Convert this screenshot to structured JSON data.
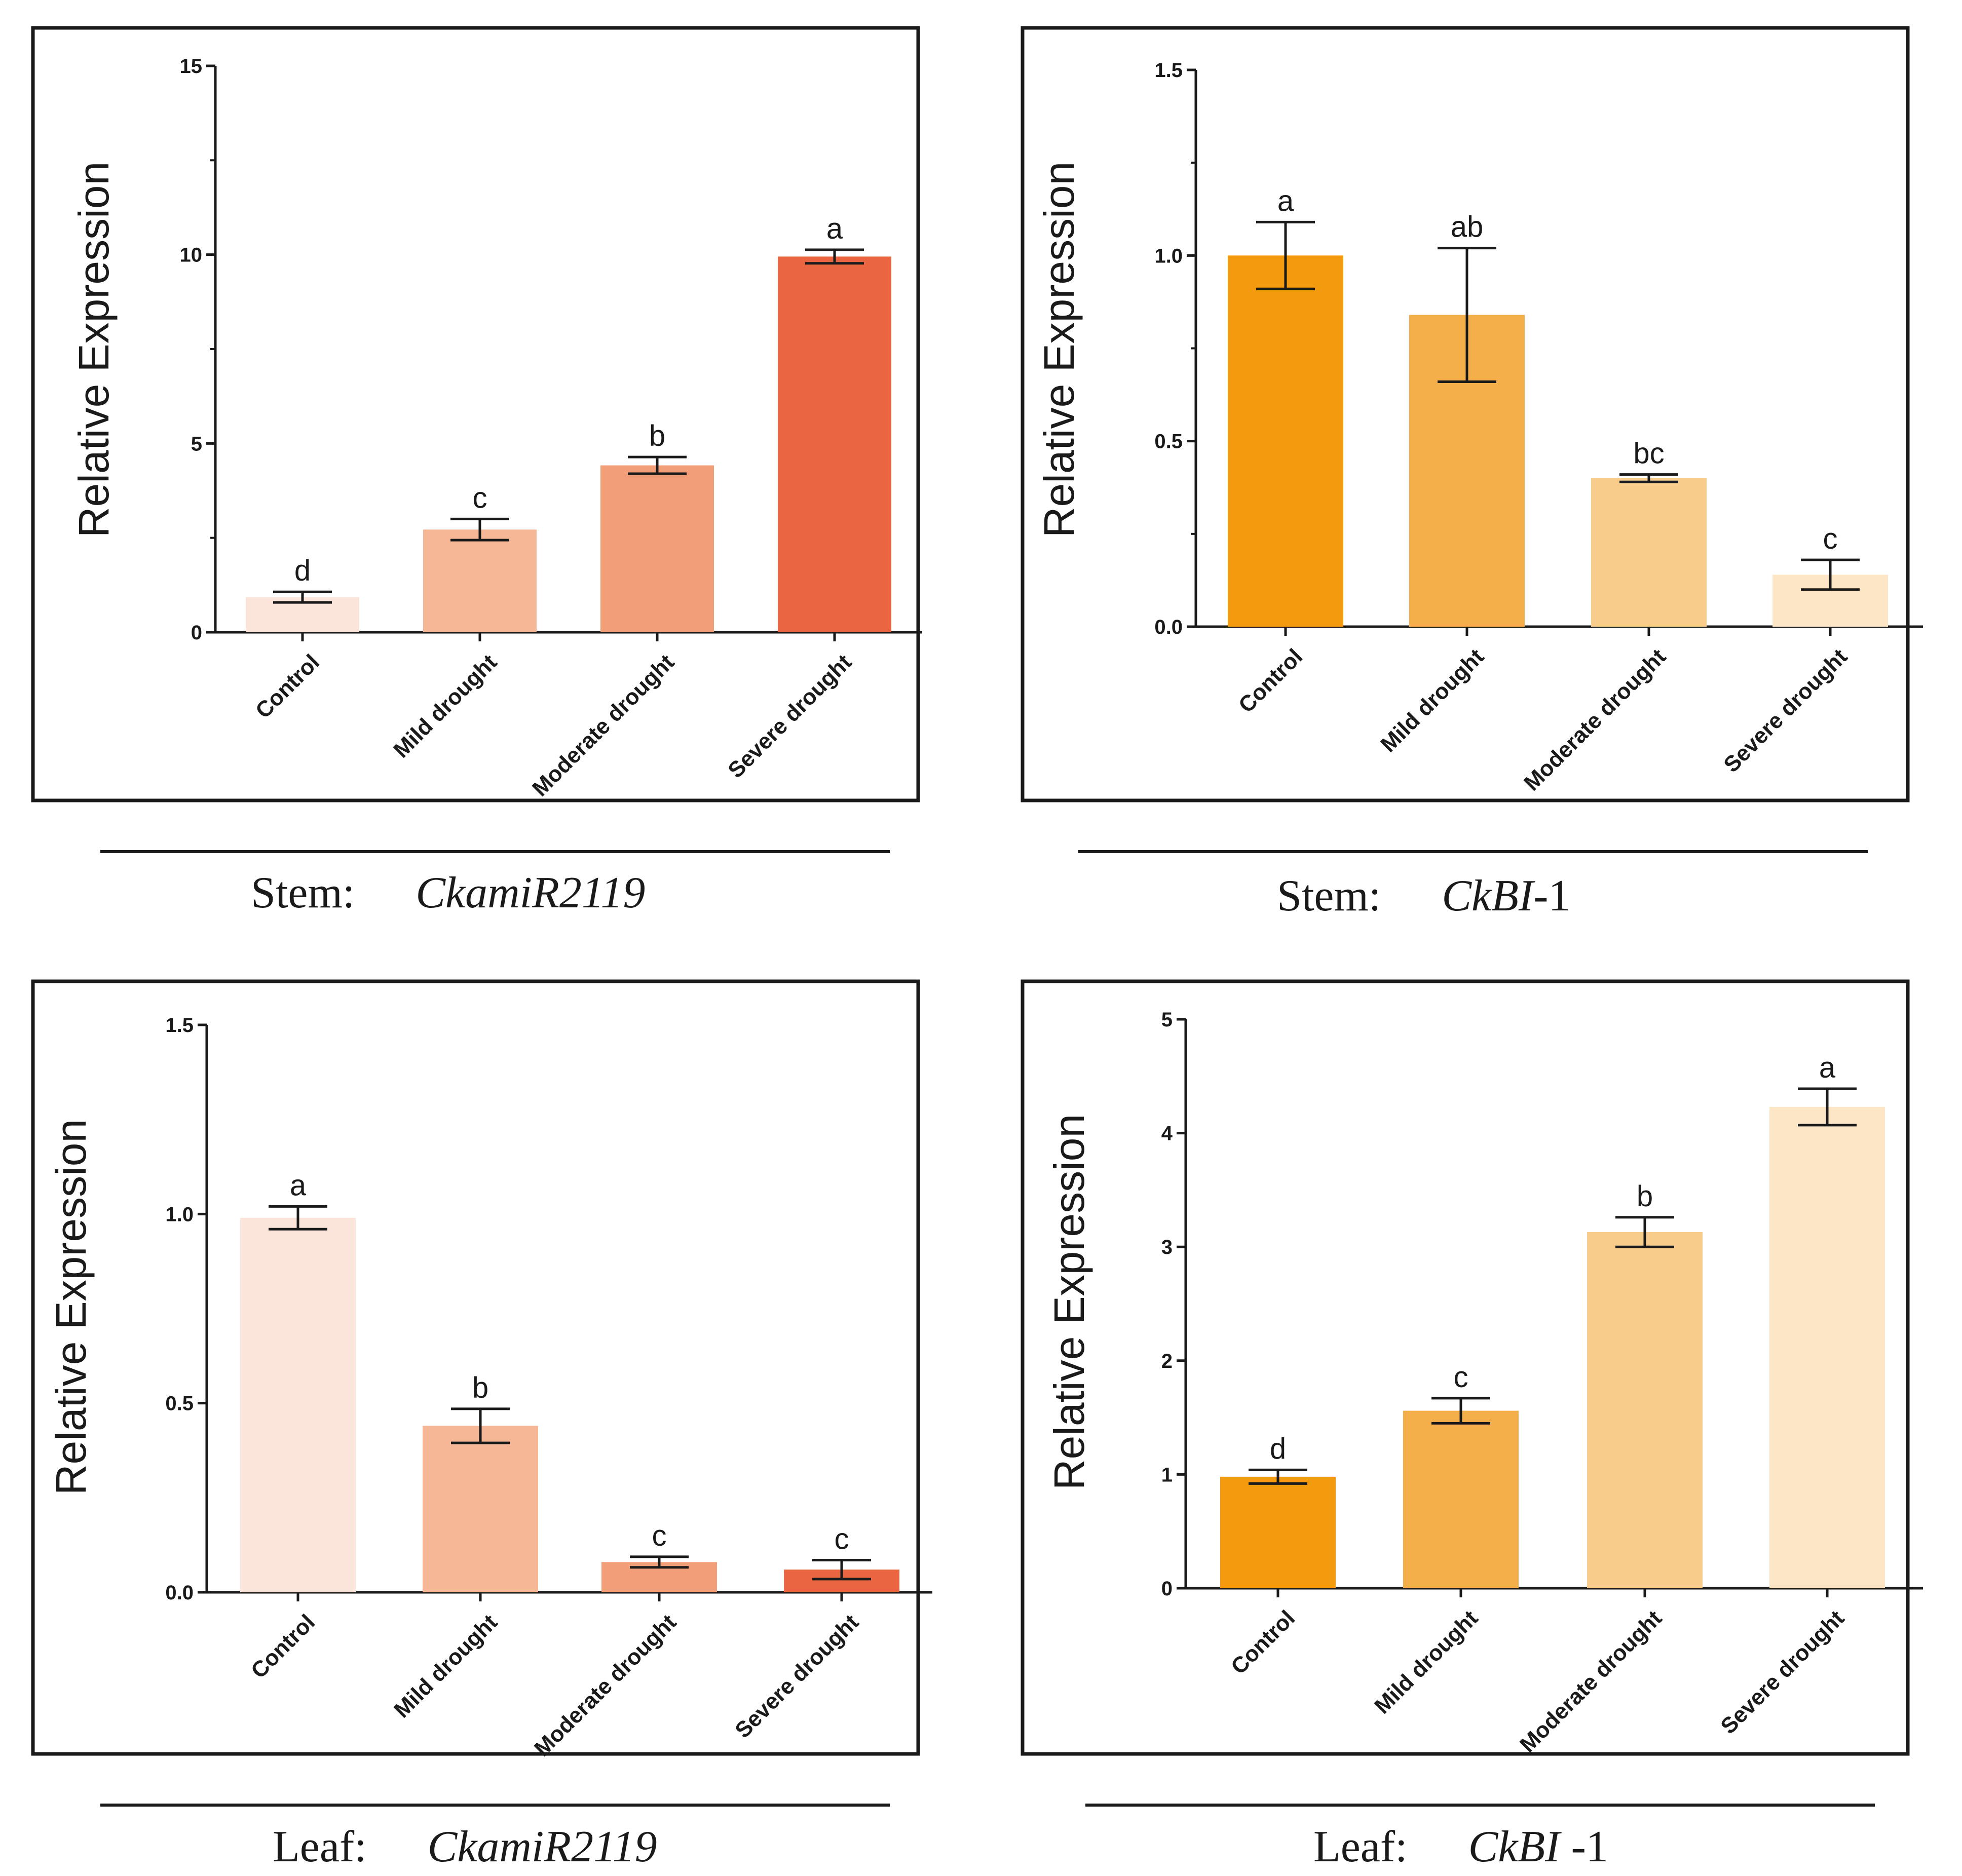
{
  "ylabel": "Relative Expression",
  "categories": [
    "Control",
    "Mild drought",
    "Moderate drought",
    "Severe drought"
  ],
  "chart_data": [
    {
      "type": "bar",
      "panel": "Stem: CkamiR2119",
      "caption": {
        "tissue": "Stem:",
        "gene": "CkamiR2119",
        "suffix": ""
      },
      "categories": [
        "Control",
        "Mild drought",
        "Moderate drought",
        "Severe drought"
      ],
      "values": [
        0.93,
        2.72,
        4.42,
        9.95
      ],
      "errors": [
        0.14,
        0.28,
        0.22,
        0.18
      ],
      "significance": [
        "d",
        "c",
        "b",
        "a"
      ],
      "colors": [
        "#FBE5DA",
        "#F6B797",
        "#F29E79",
        "#E96641"
      ],
      "ylabel": "Relative Expression",
      "ylim": [
        0,
        15
      ],
      "yticks": [
        "0",
        "5",
        "10",
        "15"
      ],
      "minor_ticks": true
    },
    {
      "type": "bar",
      "panel": "Stem: CkBI-1",
      "caption": {
        "tissue": "Stem:",
        "gene": "CkBI",
        "suffix": "-1"
      },
      "categories": [
        "Control",
        "Mild drought",
        "Moderate drought",
        "Severe drought"
      ],
      "values": [
        1.0,
        0.84,
        0.4,
        0.14
      ],
      "errors": [
        0.09,
        0.18,
        0.01,
        0.04
      ],
      "significance": [
        "a",
        "ab",
        "bc",
        "c"
      ],
      "colors": [
        "#F39A0E",
        "#F5AF4A",
        "#F8CD8C",
        "#FCE6C6"
      ],
      "ylabel": "Relative Expression",
      "ylim": [
        0,
        1.5
      ],
      "yticks": [
        "0.0",
        "0.5",
        "1.0",
        "1.5"
      ],
      "minor_ticks": true
    },
    {
      "type": "bar",
      "panel": "Leaf: CkamiR2119",
      "caption": {
        "tissue": "Leaf:",
        "gene": "CkamiR2119",
        "suffix": ""
      },
      "categories": [
        "Control",
        "Mild drought",
        "Moderate drought",
        "Severe drought"
      ],
      "values": [
        0.99,
        0.44,
        0.08,
        0.06
      ],
      "errors": [
        0.03,
        0.045,
        0.014,
        0.025
      ],
      "significance": [
        "a",
        "b",
        "c",
        "c"
      ],
      "colors": [
        "#FBE5DA",
        "#F6B797",
        "#F29E79",
        "#E96641"
      ],
      "ylabel": "Relative Expression",
      "ylim": [
        0,
        1.5
      ],
      "yticks": [
        "0.0",
        "0.5",
        "1.0",
        "1.5"
      ],
      "minor_ticks": false
    },
    {
      "type": "bar",
      "panel": "Leaf: CkBI-1",
      "caption": {
        "tissue": "Leaf:",
        "gene": "CkBI",
        "suffix": " -1"
      },
      "categories": [
        "Control",
        "Mild drought",
        "Moderate drought",
        "Severe drought"
      ],
      "values": [
        0.98,
        1.56,
        3.13,
        4.23
      ],
      "errors": [
        0.06,
        0.11,
        0.13,
        0.16
      ],
      "significance": [
        "d",
        "c",
        "b",
        "a"
      ],
      "colors": [
        "#F39A0E",
        "#F5AF4A",
        "#F8CD8C",
        "#FCE6C6"
      ],
      "ylabel": "Relative Expression",
      "ylim": [
        0,
        5
      ],
      "yticks": [
        "0",
        "1",
        "2",
        "3",
        "4",
        "5"
      ],
      "minor_ticks": false
    }
  ]
}
